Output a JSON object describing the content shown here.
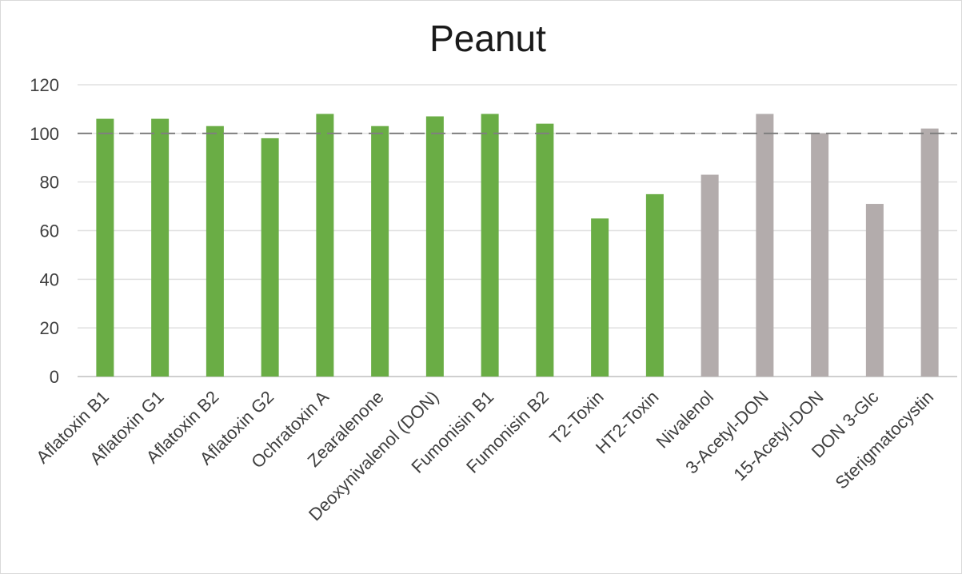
{
  "chart_data": {
    "type": "bar",
    "title": "Peanut",
    "xlabel": "",
    "ylabel": "",
    "ylim": [
      0,
      120
    ],
    "yticks": [
      "0",
      "20",
      "40",
      "60",
      "80",
      "100",
      "120"
    ],
    "grid": true,
    "reference_line": 100,
    "categories": [
      "Aflatoxin B1",
      "Aflatoxin G1",
      "Aflatoxin B2",
      "Aflatoxin G2",
      "Ochratoxin A",
      "Zearalenone",
      "Deoxynivalenol (DON)",
      "Fumonisin B1",
      "Fumonisin B2",
      "T2-Toxin",
      "HT2-Toxin",
      "Nivalenol",
      "3-Acetyl-DON",
      "15-Acetyl-DON",
      "DON 3-Glc",
      "Sterigmatocystin"
    ],
    "values": [
      106,
      106,
      103,
      98,
      108,
      103,
      107,
      108,
      104,
      65,
      75,
      83,
      108,
      100,
      71,
      102
    ],
    "bar_colors": [
      "#6aad45",
      "#6aad45",
      "#6aad45",
      "#6aad45",
      "#6aad45",
      "#6aad45",
      "#6aad45",
      "#6aad45",
      "#6aad45",
      "#6aad45",
      "#6aad45",
      "#b3acac",
      "#b3acac",
      "#b3acac",
      "#b3acac",
      "#b3acac"
    ],
    "colors": {
      "grid": "#e0e0e0",
      "axis": "#bfbfbf",
      "reference": "#7f7f7f"
    }
  }
}
